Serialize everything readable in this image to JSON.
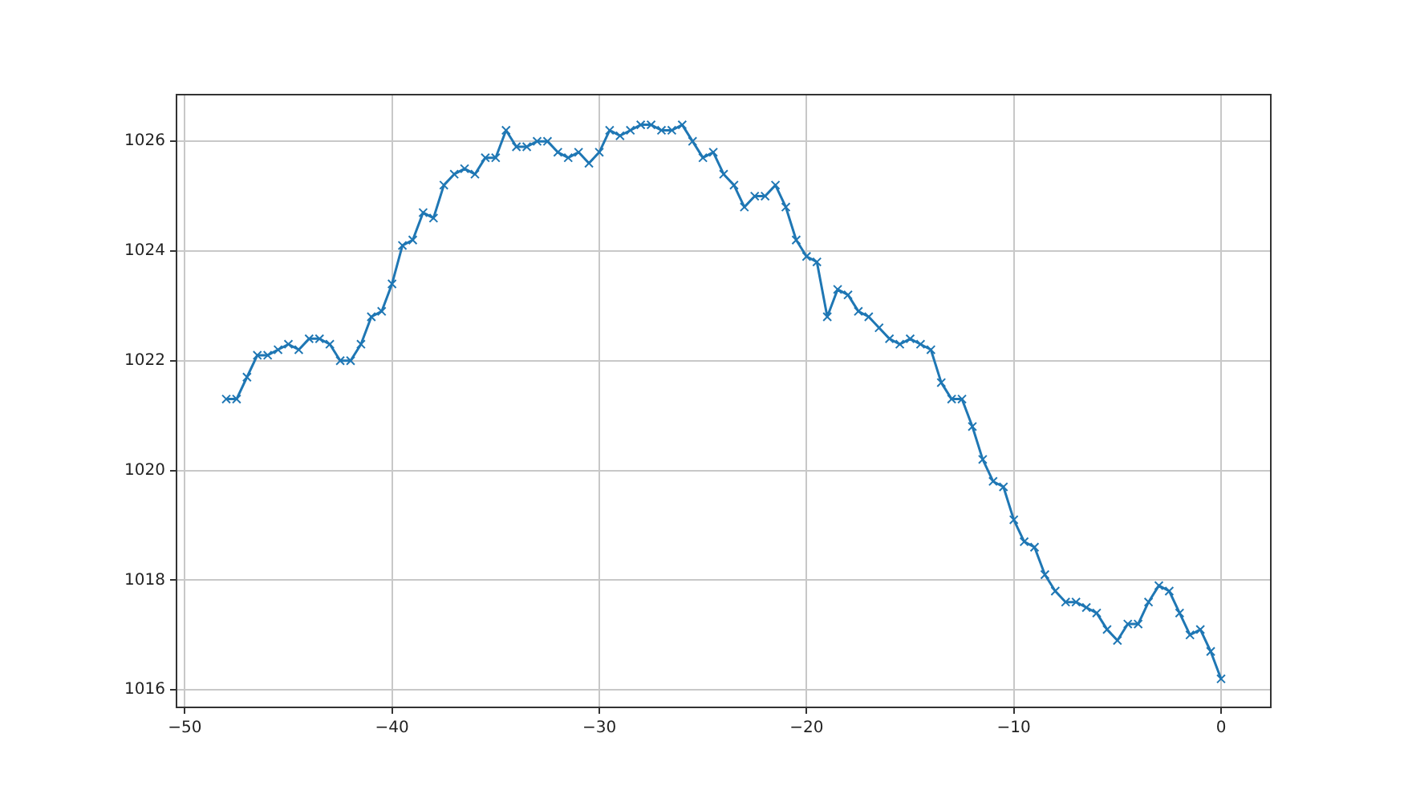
{
  "chart_data": {
    "type": "line",
    "x": [
      -48,
      -47.5,
      -47,
      -46.5,
      -46,
      -45.5,
      -45,
      -44.5,
      -44,
      -43.5,
      -43,
      -42.5,
      -42,
      -41.5,
      -41,
      -40.5,
      -40,
      -39.5,
      -39,
      -38.5,
      -38,
      -37.5,
      -37,
      -36.5,
      -36,
      -35.5,
      -35,
      -34.5,
      -34,
      -33.5,
      -33,
      -32.5,
      -32,
      -31.5,
      -31,
      -30.5,
      -30,
      -29.5,
      -29,
      -28.5,
      -28,
      -27.5,
      -27,
      -26.5,
      -26,
      -25.5,
      -25,
      -24.5,
      -24,
      -23.5,
      -23,
      -22.5,
      -22,
      -21.5,
      -21,
      -20.5,
      -20,
      -19.5,
      -19,
      -18.5,
      -18,
      -17.5,
      -17,
      -16.5,
      -16,
      -15.5,
      -15,
      -14.5,
      -14,
      -13.5,
      -13,
      -12.5,
      -12,
      -11.5,
      -11,
      -10.5,
      -10,
      -9.5,
      -9,
      -8.5,
      -8,
      -7.5,
      -7,
      -6.5,
      -6,
      -5.5,
      -5,
      -4.5,
      -4,
      -3.5,
      -3,
      -2.5,
      -2,
      -1.5,
      -1,
      -0.5,
      0
    ],
    "series": [
      {
        "color": "#1f77b4",
        "values": [
          1021.3,
          1021.3,
          1021.7,
          1022.1,
          1022.1,
          1022.2,
          1022.3,
          1022.2,
          1022.4,
          1022.4,
          1022.3,
          1022.0,
          1022.0,
          1022.3,
          1022.8,
          1022.9,
          1023.4,
          1024.1,
          1024.2,
          1024.7,
          1024.6,
          1025.2,
          1025.4,
          1025.5,
          1025.4,
          1025.7,
          1025.7,
          1026.2,
          1025.9,
          1025.9,
          1026.0,
          1026.0,
          1025.8,
          1025.7,
          1025.8,
          1025.6,
          1025.8,
          1026.2,
          1026.1,
          1026.2,
          1026.3,
          1026.3,
          1026.2,
          1026.2,
          1026.3,
          1026.0,
          1025.7,
          1025.8,
          1025.4,
          1025.2,
          1024.8,
          1025.0,
          1025.0,
          1025.2,
          1024.8,
          1024.2,
          1023.9,
          1023.8,
          1022.8,
          1023.3,
          1023.2,
          1022.9,
          1022.8,
          1022.6,
          1022.4,
          1022.3,
          1022.4,
          1022.3,
          1022.2,
          1021.6,
          1021.3,
          1021.3,
          1020.8,
          1020.2,
          1019.8,
          1019.7,
          1019.1,
          1018.7,
          1018.6,
          1018.1,
          1017.8,
          1017.6,
          1017.6,
          1017.5,
          1017.4,
          1017.1,
          1016.9,
          1017.2,
          1017.2,
          1017.6,
          1017.9,
          1017.8,
          1017.4,
          1017.0,
          1017.1,
          1016.7,
          1016.2
        ]
      }
    ],
    "xlim": [
      -50.4,
      2.4
    ],
    "ylim": [
      1015.68,
      1026.85
    ],
    "xticks": [
      {
        "value": -50,
        "label": "−50"
      },
      {
        "value": -40,
        "label": "−40"
      },
      {
        "value": -30,
        "label": "−30"
      },
      {
        "value": -20,
        "label": "−20"
      },
      {
        "value": -10,
        "label": "−10"
      },
      0
    ],
    "yticks": [
      1016,
      1018,
      1020,
      1022,
      1024,
      1026
    ],
    "grid": true,
    "marker": "cross",
    "line_style": "solid"
  }
}
